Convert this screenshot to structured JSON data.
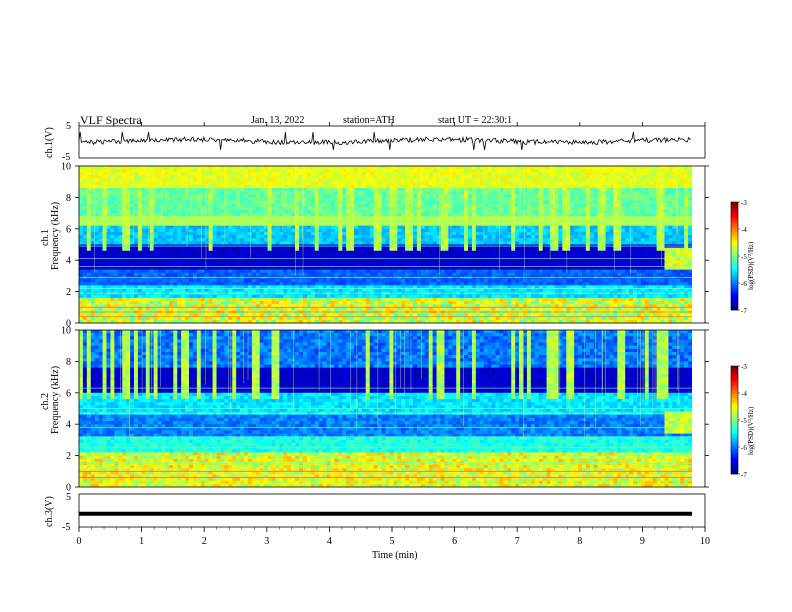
{
  "header": {
    "title": "VLF Spectra",
    "date": "Jan. 13, 2022",
    "station": "station=ATH",
    "start": "start UT = 22:30:1"
  },
  "panels": {
    "ch1_waveform": {
      "ylabel": "ch.1(V)",
      "ymax_label": "5",
      "ymin_label": "-5"
    },
    "ch1_spec": {
      "ylabel_top": "ch.1",
      "ylabel": "Frequency (kHz)"
    },
    "ch2_spec": {
      "ylabel_top": "ch.2",
      "ylabel": "Frequency (kHz)"
    },
    "ch3_waveform": {
      "ylabel": "ch.3(V)",
      "ymax_label": "5",
      "ymin_label": "-5"
    }
  },
  "colorbar": {
    "label": "log(PSD)(V²/Hz)",
    "ticks": [
      "-3",
      "-4",
      "-5",
      "-6",
      "-7"
    ]
  },
  "xaxis": {
    "label": "Time (min)",
    "ticks": [
      "0",
      "1",
      "2",
      "3",
      "4",
      "5",
      "6",
      "7",
      "8",
      "9",
      "10"
    ]
  },
  "freq_ticks": [
    "0",
    "2",
    "4",
    "6",
    "8",
    "10"
  ],
  "chart_data": [
    {
      "type": "line",
      "title": "VLF Spectra",
      "ylabel": "ch.1(V)",
      "xlabel": "",
      "xlim": [
        0,
        10
      ],
      "ylim": [
        -5,
        5
      ],
      "series": [
        {
          "values_description_free": true,
          "x": [
            0,
            10
          ],
          "y": [
            0,
            0
          ]
        }
      ]
    },
    {
      "type": "heatmap",
      "ylabel": "Frequency (kHz)",
      "xlim": [
        0,
        10
      ],
      "ylim": [
        0,
        10
      ],
      "colorbar_range": [
        -7,
        -3
      ],
      "colorbar_label": "log(PSD)(V²/Hz)"
    },
    {
      "type": "heatmap",
      "ylabel": "Frequency (kHz)",
      "xlim": [
        0,
        10
      ],
      "ylim": [
        0,
        10
      ],
      "colorbar_range": [
        -7,
        -3
      ],
      "colorbar_label": "log(PSD)(V²/Hz)"
    },
    {
      "type": "line",
      "ylabel": "ch.3(V)",
      "xlabel": "Time (min)",
      "xlim": [
        0,
        10
      ],
      "ylim": [
        -5,
        5
      ],
      "series": [
        {
          "x": [
            0,
            9.8
          ],
          "y": [
            -1,
            -1
          ]
        }
      ]
    }
  ]
}
